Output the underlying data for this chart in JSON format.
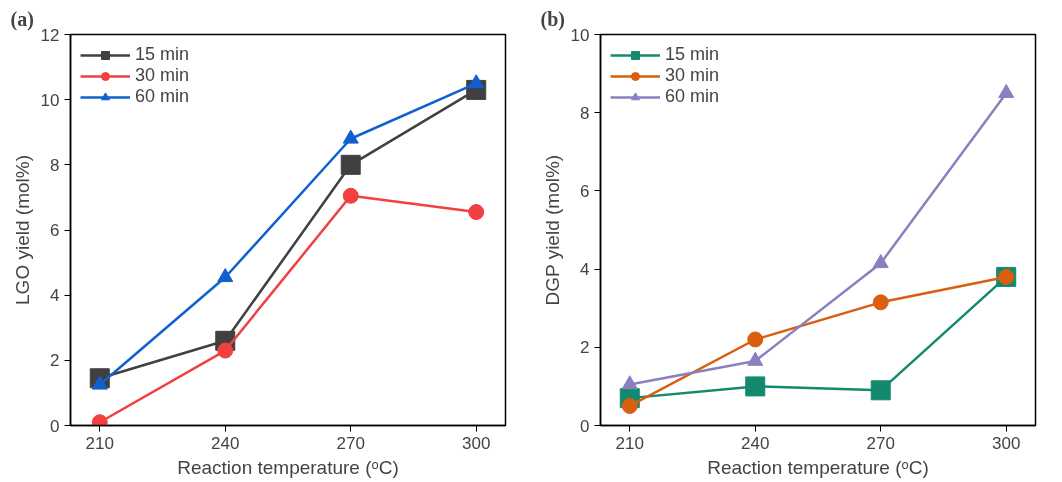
{
  "chart_data": [
    {
      "type": "line",
      "title": "(a)",
      "xlabel": "Reaction temperature (ᵒC)",
      "ylabel": "LGO yield (mol%)",
      "x": [
        210,
        240,
        270,
        300
      ],
      "xlim": [
        203,
        307
      ],
      "xticks": [
        210,
        240,
        270,
        300
      ],
      "ylim": [
        0,
        12
      ],
      "yticks": [
        0,
        2,
        4,
        6,
        8,
        10,
        12
      ],
      "grid": false,
      "legend": "top left",
      "line_style": "solid",
      "series": [
        {
          "name": "15 min",
          "color": "#404040",
          "marker": "square",
          "values": [
            1.45,
            2.6,
            8.0,
            10.3
          ]
        },
        {
          "name": "30 min",
          "color": "#f04040",
          "marker": "circle",
          "values": [
            0.1,
            2.3,
            7.05,
            6.55
          ]
        },
        {
          "name": "60 min",
          "color": "#1060d0",
          "marker": "triangle",
          "values": [
            1.25,
            4.55,
            8.8,
            10.5
          ]
        }
      ]
    },
    {
      "type": "line",
      "title": "(b)",
      "xlabel": "Reaction temperature (ᵒC)",
      "ylabel": "DGP yield (mol%)",
      "x": [
        210,
        240,
        270,
        300
      ],
      "xlim": [
        203,
        307
      ],
      "xticks": [
        210,
        240,
        270,
        300
      ],
      "ylim": [
        0,
        10
      ],
      "yticks": [
        0,
        2,
        4,
        6,
        8,
        10
      ],
      "grid": false,
      "legend": "top left",
      "line_style": "solid",
      "series": [
        {
          "name": "15 min",
          "color": "#138a6e",
          "marker": "square",
          "values": [
            0.7,
            1.0,
            0.9,
            3.8
          ]
        },
        {
          "name": "30 min",
          "color": "#d95f0e",
          "marker": "circle",
          "values": [
            0.5,
            2.2,
            3.15,
            3.8
          ]
        },
        {
          "name": "60 min",
          "color": "#8c7fc0",
          "marker": "triangle",
          "values": [
            1.05,
            1.65,
            4.15,
            8.5
          ]
        }
      ]
    }
  ]
}
